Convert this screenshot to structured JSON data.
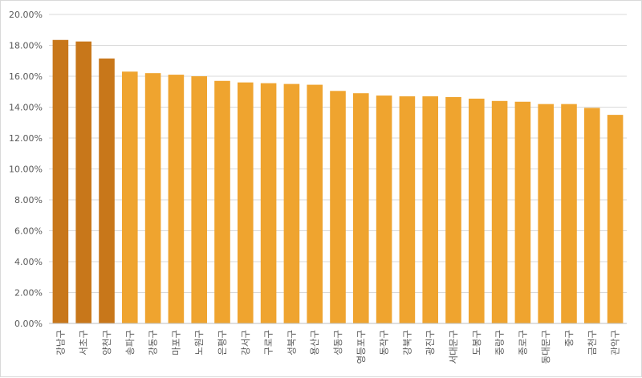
{
  "chart_data": {
    "type": "bar",
    "title": "",
    "xlabel": "",
    "ylabel": "",
    "ylim": [
      0,
      20
    ],
    "y_ticks": [
      "0.00%",
      "2.00%",
      "4.00%",
      "6.00%",
      "8.00%",
      "10.00%",
      "12.00%",
      "14.00%",
      "16.00%",
      "18.00%",
      "20.00%"
    ],
    "grid": true,
    "legend": "none",
    "categories": [
      "강남구",
      "서초구",
      "양천구",
      "송파구",
      "강동구",
      "마포구",
      "노원구",
      "은평구",
      "강서구",
      "구로구",
      "성북구",
      "용산구",
      "성동구",
      "영등포구",
      "동작구",
      "강북구",
      "광진구",
      "서대문구",
      "도봉구",
      "중랑구",
      "종로구",
      "동대문구",
      "중구",
      "금천구",
      "관악구"
    ],
    "values": [
      18.35,
      18.25,
      17.15,
      16.3,
      16.2,
      16.1,
      16.0,
      15.7,
      15.6,
      15.55,
      15.5,
      15.45,
      15.05,
      14.9,
      14.75,
      14.7,
      14.7,
      14.65,
      14.55,
      14.4,
      14.35,
      14.2,
      14.2,
      13.95,
      13.5
    ],
    "highlight_count": 3,
    "colors": {
      "highlight": "#C8771A",
      "bar": "#EFA42F",
      "grid": "#d9d9d9",
      "axis": "#bfbfbf",
      "text": "#595959"
    }
  }
}
